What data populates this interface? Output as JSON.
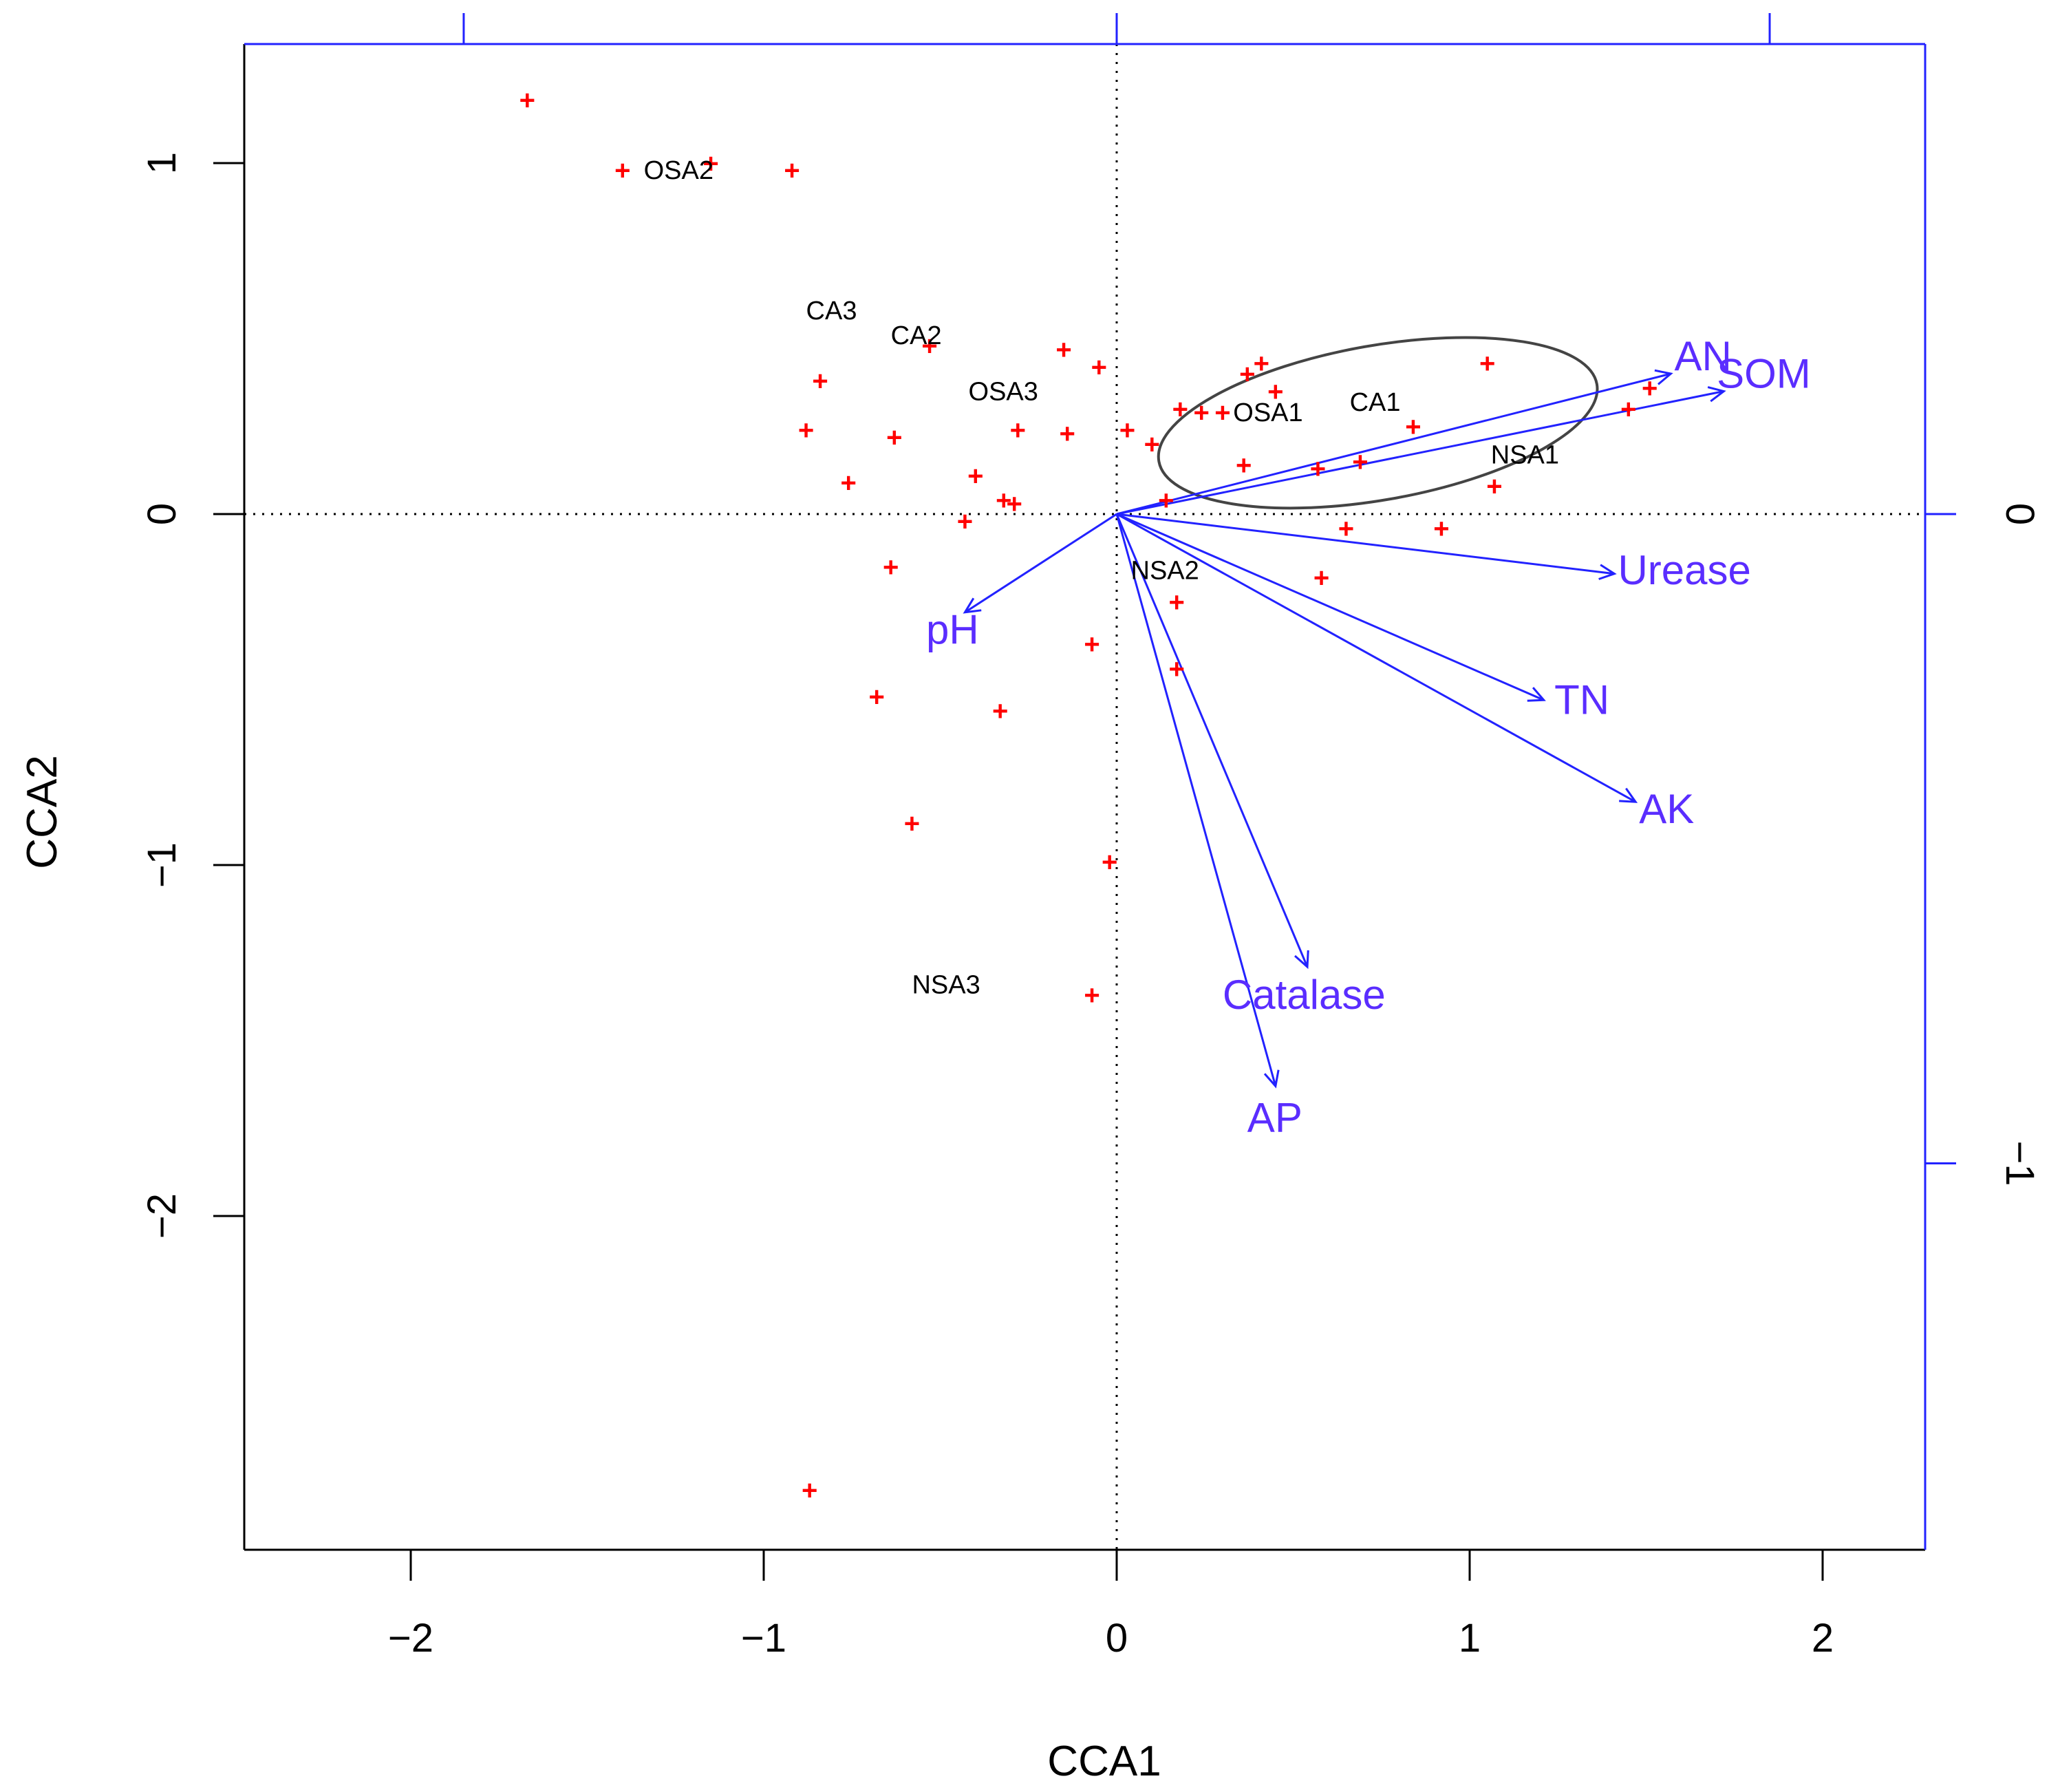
{
  "chart_data": {
    "type": "scatter",
    "subtype": "cca-triplot",
    "title": "",
    "xlabel": "CCA1",
    "ylabel": "CCA2",
    "xlim": [
      -2.5,
      2.28
    ],
    "ylim": [
      -2.95,
      1.34
    ],
    "x_ticks": [
      -2,
      -1,
      0,
      1,
      2
    ],
    "y_ticks": [
      -2,
      -1,
      0,
      1
    ],
    "secondary_axes": {
      "color": "#2222ff",
      "top_ticks_at_x": [
        -1.85,
        0,
        1.85
      ],
      "right_ticks": [
        {
          "label": "0",
          "at_y": 0
        },
        {
          "label": "-1",
          "at_y": -1.85
        }
      ]
    },
    "reference_lines": {
      "x": 0,
      "y": 0,
      "style": "dotted"
    },
    "point_color": "#ff0000",
    "vector_color": "#2222ff",
    "label_color": "#5a2dff",
    "points": [
      {
        "x": -1.67,
        "y": 1.18
      },
      {
        "x": -1.4,
        "y": 0.98
      },
      {
        "x": -0.92,
        "y": 0.98
      },
      {
        "x": -1.15,
        "y": 1.0
      },
      {
        "x": -0.53,
        "y": 0.48
      },
      {
        "x": -0.84,
        "y": 0.38
      },
      {
        "x": -0.88,
        "y": 0.24
      },
      {
        "x": -0.63,
        "y": 0.22
      },
      {
        "x": -0.76,
        "y": 0.09
      },
      {
        "x": -0.4,
        "y": 0.11
      },
      {
        "x": -0.32,
        "y": 0.04
      },
      {
        "x": -0.29,
        "y": 0.03
      },
      {
        "x": -0.43,
        "y": -0.02
      },
      {
        "x": -0.28,
        "y": 0.24
      },
      {
        "x": -0.14,
        "y": 0.23
      },
      {
        "x": -0.15,
        "y": 0.47
      },
      {
        "x": -0.05,
        "y": 0.42
      },
      {
        "x": 0.03,
        "y": 0.24
      },
      {
        "x": 0.1,
        "y": 0.2
      },
      {
        "x": 0.18,
        "y": 0.3
      },
      {
        "x": 0.24,
        "y": 0.29
      },
      {
        "x": 0.3,
        "y": 0.29
      },
      {
        "x": 0.37,
        "y": 0.4
      },
      {
        "x": 0.41,
        "y": 0.43
      },
      {
        "x": 0.45,
        "y": 0.35
      },
      {
        "x": 0.36,
        "y": 0.14
      },
      {
        "x": 0.57,
        "y": 0.13
      },
      {
        "x": 0.69,
        "y": 0.15
      },
      {
        "x": 0.84,
        "y": 0.25
      },
      {
        "x": 1.05,
        "y": 0.43
      },
      {
        "x": 1.45,
        "y": 0.3
      },
      {
        "x": 1.51,
        "y": 0.36
      },
      {
        "x": 1.07,
        "y": 0.08
      },
      {
        "x": 0.14,
        "y": 0.04
      },
      {
        "x": 0.65,
        "y": -0.04
      },
      {
        "x": 0.92,
        "y": -0.04
      },
      {
        "x": 0.58,
        "y": -0.18
      },
      {
        "x": 0.17,
        "y": -0.25
      },
      {
        "x": -0.64,
        "y": -0.15
      },
      {
        "x": -0.07,
        "y": -0.37
      },
      {
        "x": 0.17,
        "y": -0.44
      },
      {
        "x": -0.68,
        "y": -0.52
      },
      {
        "x": -0.33,
        "y": -0.56
      },
      {
        "x": -0.58,
        "y": -0.88
      },
      {
        "x": -0.02,
        "y": -0.99
      },
      {
        "x": -0.07,
        "y": -1.37
      },
      {
        "x": -0.87,
        "y": -2.78
      }
    ],
    "site_labels": [
      {
        "text": "OSA2",
        "x": -1.34,
        "y": 0.98
      },
      {
        "text": "CA3",
        "x": -0.88,
        "y": 0.58
      },
      {
        "text": "CA2",
        "x": -0.64,
        "y": 0.51
      },
      {
        "text": "OSA3",
        "x": -0.42,
        "y": 0.35
      },
      {
        "text": "OSA1",
        "x": 0.33,
        "y": 0.29
      },
      {
        "text": "CA1",
        "x": 0.66,
        "y": 0.32
      },
      {
        "text": "NSA1",
        "x": 1.06,
        "y": 0.17
      },
      {
        "text": "NSA2",
        "x": 0.04,
        "y": -0.16
      },
      {
        "text": "NSA3",
        "x": -0.58,
        "y": -1.34
      }
    ],
    "vectors": [
      {
        "name": "AN",
        "x": 1.57,
        "y": 0.4,
        "label_x": 1.58,
        "label_y": 0.41
      },
      {
        "name": "SOM",
        "x": 1.72,
        "y": 0.35,
        "label_x": 1.7,
        "label_y": 0.36
      },
      {
        "name": "Urease",
        "x": 1.41,
        "y": -0.17,
        "label_x": 1.42,
        "label_y": -0.2
      },
      {
        "name": "TN",
        "x": 1.21,
        "y": -0.53,
        "label_x": 1.24,
        "label_y": -0.57
      },
      {
        "name": "AK",
        "x": 1.47,
        "y": -0.82,
        "label_x": 1.48,
        "label_y": -0.88
      },
      {
        "name": "pH",
        "x": -0.43,
        "y": -0.28,
        "label_x": -0.54,
        "label_y": -0.37
      },
      {
        "name": "Catalase",
        "x": 0.54,
        "y": -1.29,
        "label_x": 0.3,
        "label_y": -1.41
      },
      {
        "name": "AP",
        "x": 0.45,
        "y": -1.63,
        "label_x": 0.37,
        "label_y": -1.76
      }
    ],
    "ellipse": {
      "cx": 0.74,
      "cy": 0.26,
      "rx": 0.63,
      "ry": 0.22,
      "rotation_deg": -10,
      "color": "#444444"
    }
  }
}
